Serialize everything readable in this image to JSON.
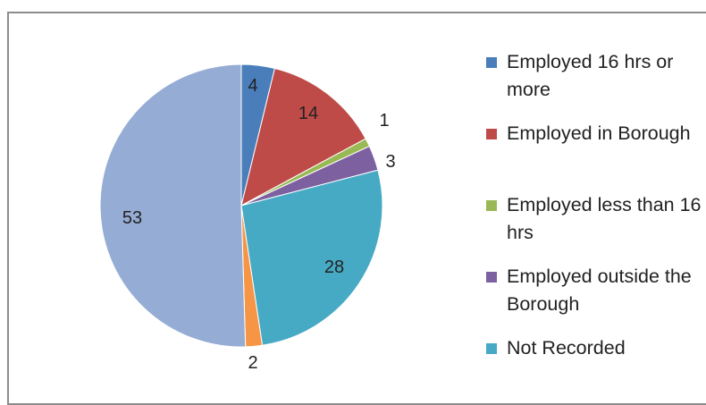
{
  "chart_data": {
    "type": "pie",
    "title": "",
    "slices": [
      {
        "label": "Employed 16 hrs or more",
        "value": 4,
        "color": "#4a7ebb",
        "data_label": "4"
      },
      {
        "label": "Employed in Borough",
        "value": 14,
        "color": "#be4b48",
        "data_label": "14"
      },
      {
        "label": "Employed less than 16 hrs",
        "value": 1,
        "color": "#98b954",
        "data_label": "1"
      },
      {
        "label": "Employed outside the Borough",
        "value": 3,
        "color": "#7d60a0",
        "data_label": "3"
      },
      {
        "label": "Not Recorded",
        "value": 28,
        "color": "#46aac5",
        "data_label": "28"
      },
      {
        "label": "",
        "value": 2,
        "color": "#f69546",
        "data_label": "2"
      },
      {
        "label": "",
        "value": 53,
        "color": "#95acd4",
        "data_label": "53"
      }
    ],
    "legend": {
      "position": "right",
      "entries": [
        "Employed 16 hrs or more",
        "Employed in Borough",
        "Employed less than 16 hrs",
        "Employed outside the Borough",
        "Not Recorded"
      ]
    }
  }
}
